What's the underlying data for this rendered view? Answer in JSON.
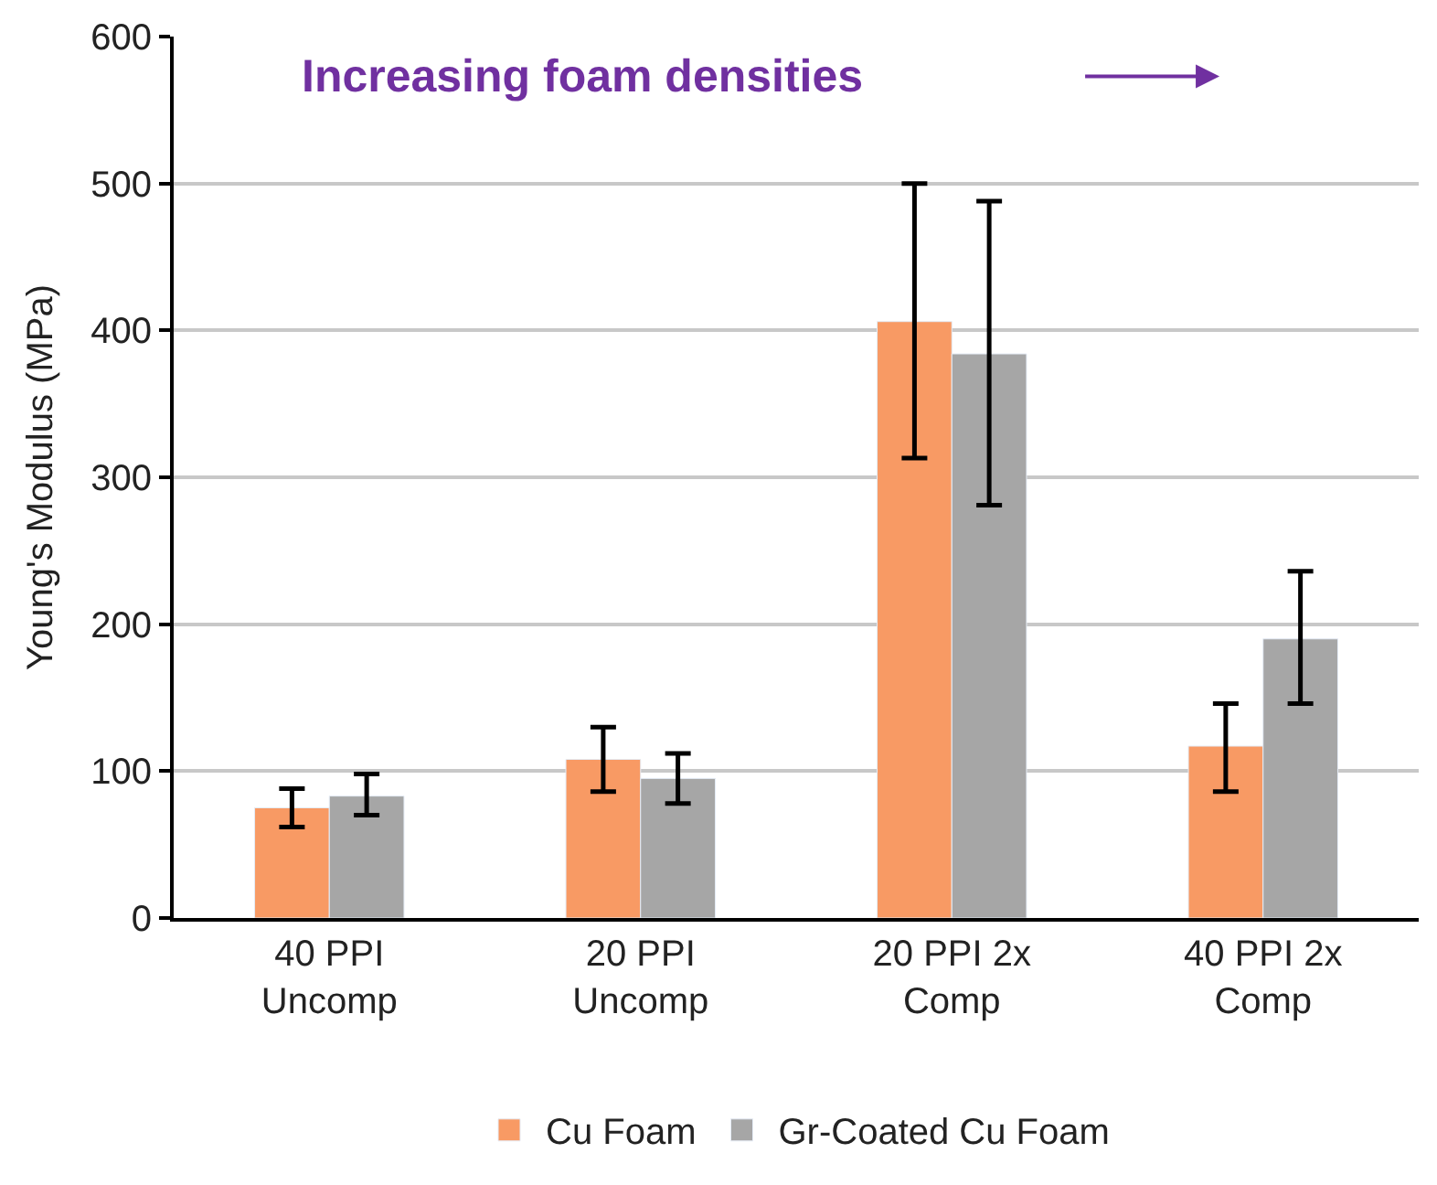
{
  "chart_data": {
    "type": "bar",
    "ylabel": "Young's Modulus (MPa)",
    "categories": [
      "40 PPI Uncomp",
      "20 PPI Uncomp",
      "20 PPI 2x Comp",
      "40 PPI 2x Comp"
    ],
    "series": [
      {
        "name": "Cu Foam",
        "color": "#f89a64",
        "values": [
          75,
          108,
          406,
          117
        ],
        "errors": [
          [
            62,
            88
          ],
          [
            86,
            130
          ],
          [
            313,
            500
          ],
          [
            86,
            146
          ]
        ]
      },
      {
        "name": "Gr-Coated Cu Foam",
        "color": "#a6a6a6",
        "values": [
          83,
          95,
          384,
          190
        ],
        "errors": [
          [
            70,
            98
          ],
          [
            78,
            112
          ],
          [
            281,
            488
          ],
          [
            146,
            236
          ]
        ]
      }
    ],
    "ylim": [
      0,
      600
    ],
    "yticks": [
      0,
      100,
      200,
      300,
      400,
      500,
      600
    ],
    "grid": "y",
    "legend": "bottom",
    "annotations": [
      "Increasing foam densities"
    ]
  }
}
